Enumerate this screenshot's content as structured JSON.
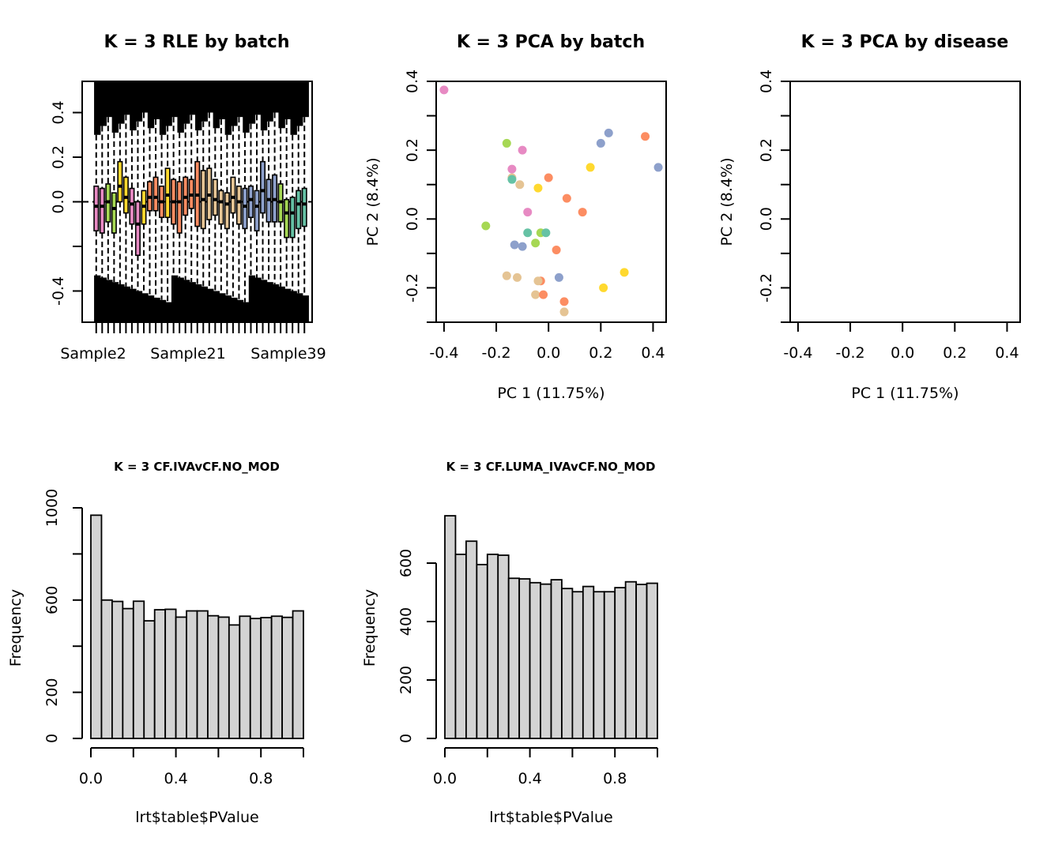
{
  "chart_data": [
    {
      "type": "boxplot",
      "title": "K = 3 RLE by batch",
      "xlabel": "",
      "ylabel": "",
      "ylim": [
        -0.54,
        0.54
      ],
      "yticks": [
        -0.4,
        -0.2,
        0.0,
        0.2,
        0.4
      ],
      "ytick_labels": [
        "-0.4",
        "",
        "0.0",
        "0.2",
        "0.4"
      ],
      "xtick_labels": [
        "Sample2",
        "Sample21",
        "Sample39"
      ],
      "reference_line": 0.0,
      "boxes": [
        {
          "q1": -0.13,
          "median": -0.02,
          "q3": 0.07,
          "color": "#E78AC3"
        },
        {
          "q1": -0.14,
          "median": -0.02,
          "q3": 0.06,
          "color": "#E78AC3"
        },
        {
          "q1": -0.09,
          "median": 0.0,
          "q3": 0.08,
          "color": "#A6D854"
        },
        {
          "q1": -0.14,
          "median": -0.03,
          "q3": 0.04,
          "color": "#A6D854"
        },
        {
          "q1": 0.0,
          "median": 0.07,
          "q3": 0.18,
          "color": "#FFD92F"
        },
        {
          "q1": -0.05,
          "median": 0.02,
          "q3": 0.11,
          "color": "#FFD92F"
        },
        {
          "q1": -0.1,
          "median": -0.01,
          "q3": 0.06,
          "color": "#E78AC3"
        },
        {
          "q1": -0.24,
          "median": -0.1,
          "q3": 0.0,
          "color": "#E78AC3"
        },
        {
          "q1": -0.1,
          "median": -0.02,
          "q3": 0.05,
          "color": "#FFD92F"
        },
        {
          "q1": -0.04,
          "median": 0.02,
          "q3": 0.09,
          "color": "#FC8D62"
        },
        {
          "q1": -0.04,
          "median": 0.02,
          "q3": 0.11,
          "color": "#FC8D62"
        },
        {
          "q1": -0.07,
          "median": 0.0,
          "q3": 0.07,
          "color": "#FC8D62"
        },
        {
          "q1": -0.07,
          "median": 0.03,
          "q3": 0.15,
          "color": "#FFD92F"
        },
        {
          "q1": -0.1,
          "median": 0.0,
          "q3": 0.1,
          "color": "#FC8D62"
        },
        {
          "q1": -0.14,
          "median": 0.0,
          "q3": 0.09,
          "color": "#FC8D62"
        },
        {
          "q1": -0.06,
          "median": 0.02,
          "q3": 0.11,
          "color": "#FC8D62"
        },
        {
          "q1": -0.03,
          "median": 0.03,
          "q3": 0.1,
          "color": "#FC8D62"
        },
        {
          "q1": -0.11,
          "median": 0.03,
          "q3": 0.18,
          "color": "#FC8D62"
        },
        {
          "q1": -0.12,
          "median": 0.01,
          "q3": 0.14,
          "color": "#E5C494"
        },
        {
          "q1": -0.08,
          "median": 0.03,
          "q3": 0.15,
          "color": "#E5C494"
        },
        {
          "q1": -0.06,
          "median": 0.01,
          "q3": 0.1,
          "color": "#E5C494"
        },
        {
          "q1": -0.1,
          "median": 0.0,
          "q3": 0.05,
          "color": "#E5C494"
        },
        {
          "q1": -0.12,
          "median": -0.01,
          "q3": 0.04,
          "color": "#E5C494"
        },
        {
          "q1": -0.05,
          "median": 0.02,
          "q3": 0.11,
          "color": "#E5C494"
        },
        {
          "q1": -0.1,
          "median": 0.0,
          "q3": 0.07,
          "color": "#E5C494"
        },
        {
          "q1": -0.12,
          "median": -0.02,
          "q3": 0.06,
          "color": "#8DA0CB"
        },
        {
          "q1": -0.07,
          "median": 0.01,
          "q3": 0.07,
          "color": "#8DA0CB"
        },
        {
          "q1": -0.13,
          "median": -0.02,
          "q3": 0.05,
          "color": "#8DA0CB"
        },
        {
          "q1": -0.05,
          "median": 0.05,
          "q3": 0.18,
          "color": "#8DA0CB"
        },
        {
          "q1": -0.09,
          "median": 0.01,
          "q3": 0.1,
          "color": "#8DA0CB"
        },
        {
          "q1": -0.09,
          "median": 0.01,
          "q3": 0.12,
          "color": "#8DA0CB"
        },
        {
          "q1": -0.09,
          "median": 0.0,
          "q3": 0.08,
          "color": "#A6D854"
        },
        {
          "q1": -0.16,
          "median": -0.05,
          "q3": 0.01,
          "color": "#A6D854"
        },
        {
          "q1": -0.16,
          "median": -0.05,
          "q3": 0.02,
          "color": "#66C2A5"
        },
        {
          "q1": -0.12,
          "median": -0.01,
          "q3": 0.05,
          "color": "#66C2A5"
        },
        {
          "q1": -0.11,
          "median": -0.01,
          "q3": 0.06,
          "color": "#66C2A5"
        }
      ]
    },
    {
      "type": "scatter",
      "title": "K = 3 PCA by batch",
      "xlabel": "PC 1 (11.75%)",
      "ylabel": "PC 2 (8.4%)",
      "xlim": [
        -0.43,
        0.45
      ],
      "ylim": [
        -0.3,
        0.4
      ],
      "xticks": [
        -0.4,
        -0.2,
        0.0,
        0.2,
        0.4
      ],
      "xtick_labels": [
        "-0.4",
        "-0.2",
        "0.0",
        "0.2",
        "0.4"
      ],
      "yticks": [
        -0.3,
        -0.2,
        -0.1,
        0.0,
        0.1,
        0.2,
        0.3,
        0.4
      ],
      "ytick_labels": [
        "",
        "-0.2",
        "",
        "0.0",
        "",
        "0.2",
        "",
        "0.4"
      ],
      "points": [
        {
          "x": -0.4,
          "y": 0.375,
          "color": "#E78AC3"
        },
        {
          "x": -0.16,
          "y": 0.22,
          "color": "#A6D854"
        },
        {
          "x": -0.1,
          "y": 0.2,
          "color": "#E78AC3"
        },
        {
          "x": -0.14,
          "y": 0.145,
          "color": "#E78AC3"
        },
        {
          "x": -0.14,
          "y": 0.12,
          "color": "#E5C494"
        },
        {
          "x": -0.14,
          "y": 0.115,
          "color": "#66C2A5"
        },
        {
          "x": -0.11,
          "y": 0.1,
          "color": "#E5C494"
        },
        {
          "x": -0.04,
          "y": 0.09,
          "color": "#FFD92F"
        },
        {
          "x": 0.0,
          "y": 0.12,
          "color": "#FC8D62"
        },
        {
          "x": 0.07,
          "y": 0.06,
          "color": "#FC8D62"
        },
        {
          "x": 0.16,
          "y": 0.15,
          "color": "#FFD92F"
        },
        {
          "x": 0.2,
          "y": 0.22,
          "color": "#8DA0CB"
        },
        {
          "x": 0.23,
          "y": 0.25,
          "color": "#8DA0CB"
        },
        {
          "x": 0.37,
          "y": 0.24,
          "color": "#FC8D62"
        },
        {
          "x": 0.42,
          "y": 0.15,
          "color": "#8DA0CB"
        },
        {
          "x": 0.13,
          "y": 0.02,
          "color": "#FC8D62"
        },
        {
          "x": -0.08,
          "y": 0.02,
          "color": "#E78AC3"
        },
        {
          "x": -0.24,
          "y": -0.02,
          "color": "#A6D854"
        },
        {
          "x": -0.08,
          "y": -0.04,
          "color": "#66C2A5"
        },
        {
          "x": -0.03,
          "y": -0.04,
          "color": "#A6D854"
        },
        {
          "x": -0.01,
          "y": -0.04,
          "color": "#66C2A5"
        },
        {
          "x": -0.05,
          "y": -0.07,
          "color": "#A6D854"
        },
        {
          "x": -0.13,
          "y": -0.075,
          "color": "#8DA0CB"
        },
        {
          "x": -0.1,
          "y": -0.08,
          "color": "#8DA0CB"
        },
        {
          "x": 0.03,
          "y": -0.09,
          "color": "#FC8D62"
        },
        {
          "x": -0.16,
          "y": -0.165,
          "color": "#E5C494"
        },
        {
          "x": -0.12,
          "y": -0.17,
          "color": "#E5C494"
        },
        {
          "x": -0.03,
          "y": -0.18,
          "color": "#FC8D62"
        },
        {
          "x": -0.04,
          "y": -0.18,
          "color": "#E5C494"
        },
        {
          "x": 0.04,
          "y": -0.17,
          "color": "#8DA0CB"
        },
        {
          "x": 0.29,
          "y": -0.155,
          "color": "#FFD92F"
        },
        {
          "x": 0.21,
          "y": -0.2,
          "color": "#FFD92F"
        },
        {
          "x": -0.05,
          "y": -0.22,
          "color": "#E5C494"
        },
        {
          "x": -0.02,
          "y": -0.22,
          "color": "#FC8D62"
        },
        {
          "x": 0.06,
          "y": -0.24,
          "color": "#FC8D62"
        },
        {
          "x": 0.06,
          "y": -0.27,
          "color": "#E5C494"
        }
      ]
    },
    {
      "type": "scatter",
      "title": "K = 3 PCA by disease",
      "xlabel": "PC 1 (11.75%)",
      "ylabel": "PC 2 (8.4%)",
      "xlim": [
        -0.43,
        0.45
      ],
      "ylim": [
        -0.3,
        0.4
      ],
      "xticks": [
        -0.4,
        -0.2,
        0.0,
        0.2,
        0.4
      ],
      "xtick_labels": [
        "-0.4",
        "-0.2",
        "0.0",
        "0.2",
        "0.4"
      ],
      "yticks": [
        -0.3,
        -0.2,
        -0.1,
        0.0,
        0.1,
        0.2,
        0.3,
        0.4
      ],
      "ytick_labels": [
        "",
        "-0.2",
        "",
        "0.0",
        "",
        "0.2",
        "",
        "0.4"
      ],
      "points": []
    },
    {
      "type": "bar",
      "title": "K = 3 CF.IVAvCF.NO_MOD",
      "xlabel": "lrt$table$PValue",
      "ylabel": "Frequency",
      "xlim": [
        0,
        1
      ],
      "ylim": [
        0,
        1000
      ],
      "xticks": [
        0.0,
        0.2,
        0.4,
        0.6,
        0.8,
        1.0
      ],
      "xtick_labels": [
        "0.0",
        "",
        "0.4",
        "",
        "0.8",
        ""
      ],
      "yticks": [
        0,
        200,
        400,
        600,
        800,
        1000
      ],
      "ytick_labels": [
        "0",
        "200",
        "",
        "600",
        "",
        "1000"
      ],
      "bin_width": 0.05,
      "values": [
        968,
        600,
        594,
        563,
        595,
        510,
        558,
        560,
        526,
        553,
        553,
        532,
        526,
        492,
        530,
        520,
        524,
        530,
        525,
        553
      ]
    },
    {
      "type": "bar",
      "title": "K = 3 CF.LUMA_IVAvCF.NO_MOD",
      "xlabel": "lrt$table$PValue",
      "ylabel": "Frequency",
      "xlim": [
        0,
        1
      ],
      "ylim": [
        0,
        760
      ],
      "xticks": [
        0.0,
        0.2,
        0.4,
        0.6,
        0.8,
        1.0
      ],
      "xtick_labels": [
        "0.0",
        "",
        "0.4",
        "",
        "0.8",
        ""
      ],
      "yticks": [
        0,
        200,
        400,
        600
      ],
      "ytick_labels": [
        "0",
        "200",
        "400",
        "600"
      ],
      "bin_width": 0.05,
      "values": [
        762,
        630,
        675,
        595,
        630,
        627,
        548,
        546,
        533,
        528,
        543,
        513,
        502,
        520,
        502,
        502,
        516,
        536,
        527,
        531
      ]
    }
  ]
}
